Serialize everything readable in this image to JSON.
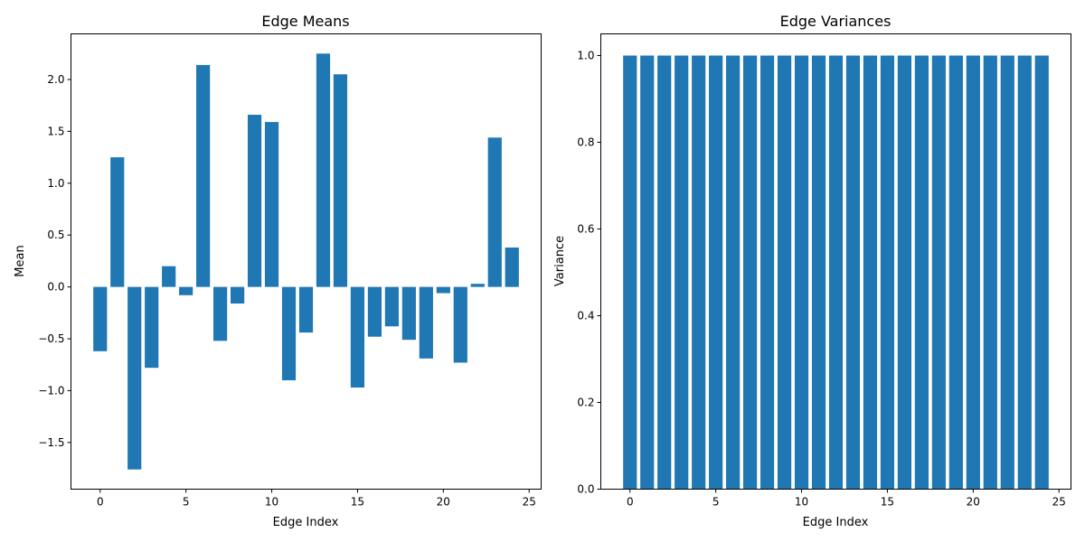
{
  "chart_data": [
    {
      "type": "bar",
      "title": "Edge Means",
      "xlabel": "Edge Index",
      "ylabel": "Mean",
      "color": "#1f77b4",
      "x": [
        0,
        1,
        2,
        3,
        4,
        5,
        6,
        7,
        8,
        9,
        10,
        11,
        12,
        13,
        14,
        15,
        16,
        17,
        18,
        19,
        20,
        21,
        22,
        23,
        24
      ],
      "values": [
        -0.62,
        1.25,
        -1.76,
        -0.78,
        0.2,
        -0.08,
        2.14,
        -0.52,
        -0.16,
        1.66,
        1.59,
        -0.9,
        -0.44,
        2.25,
        2.05,
        -0.97,
        -0.48,
        -0.38,
        -0.51,
        -0.69,
        -0.06,
        -0.73,
        0.03,
        1.44,
        0.38
      ],
      "xlim": [
        -1.7,
        25.7
      ],
      "ylim": [
        -1.95,
        2.44
      ],
      "xticks": [
        0,
        5,
        10,
        15,
        20,
        25
      ],
      "yticks": [
        -1.5,
        -1.0,
        -0.5,
        0.0,
        0.5,
        1.0,
        1.5,
        2.0
      ],
      "xtick_labels": [
        "0",
        "5",
        "10",
        "15",
        "20",
        "25"
      ],
      "ytick_labels": [
        "−1.5",
        "−1.0",
        "−0.5",
        "0.0",
        "0.5",
        "1.0",
        "1.5",
        "2.0"
      ],
      "grid": false
    },
    {
      "type": "bar",
      "title": "Edge Variances",
      "xlabel": "Edge Index",
      "ylabel": "Variance",
      "color": "#1f77b4",
      "x": [
        0,
        1,
        2,
        3,
        4,
        5,
        6,
        7,
        8,
        9,
        10,
        11,
        12,
        13,
        14,
        15,
        16,
        17,
        18,
        19,
        20,
        21,
        22,
        23,
        24
      ],
      "values": [
        1.0,
        1.0,
        1.0,
        1.0,
        1.0,
        1.0,
        1.0,
        1.0,
        1.0,
        1.0,
        1.0,
        1.0,
        1.0,
        1.0,
        1.0,
        1.0,
        1.0,
        1.0,
        1.0,
        1.0,
        1.0,
        1.0,
        1.0,
        1.0,
        1.0
      ],
      "xlim": [
        -1.7,
        25.7
      ],
      "ylim": [
        0.0,
        1.05
      ],
      "xticks": [
        0,
        5,
        10,
        15,
        20,
        25
      ],
      "yticks": [
        0.0,
        0.2,
        0.4,
        0.6,
        0.8,
        1.0
      ],
      "xtick_labels": [
        "0",
        "5",
        "10",
        "15",
        "20",
        "25"
      ],
      "ytick_labels": [
        "0.0",
        "0.2",
        "0.4",
        "0.6",
        "0.8",
        "1.0"
      ],
      "grid": false
    }
  ]
}
